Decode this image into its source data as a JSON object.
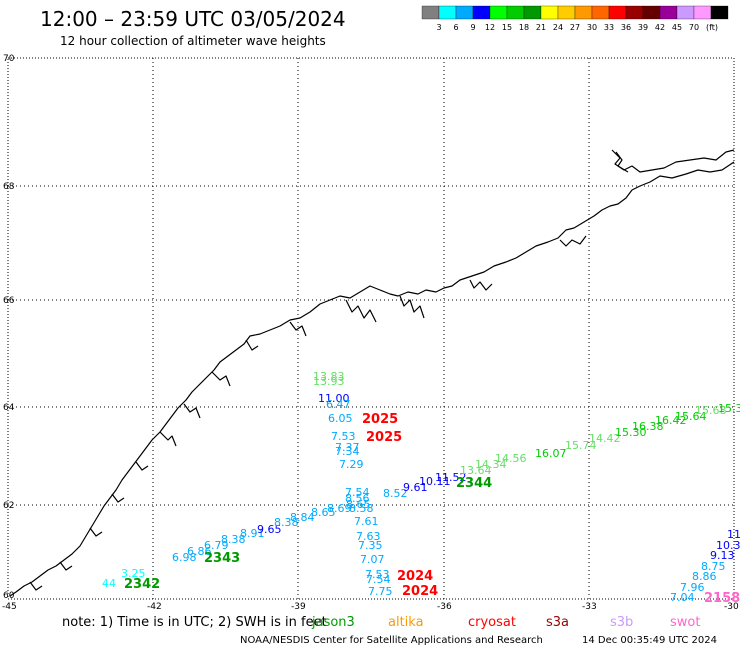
{
  "title": "12:00 – 23:59 UTC 03/05/2024",
  "subtitle": "12 hour collection of altimeter wave heights",
  "legend": {
    "colors": [
      "#808080",
      "#00ffff",
      "#00aaff",
      "#0000ff",
      "#00ff00",
      "#00cc00",
      "#009900",
      "#ffff00",
      "#ffcc00",
      "#ff9900",
      "#ff6600",
      "#ff0000",
      "#990000",
      "#660000",
      "#990099",
      "#cc99ff",
      "#ff99ff",
      "#000000"
    ],
    "labels": [
      "3",
      "6",
      "9",
      "12",
      "15",
      "18",
      "21",
      "24",
      "27",
      "30",
      "33",
      "36",
      "39",
      "42",
      "45",
      "70"
    ],
    "unit": "(ft)"
  },
  "axes": {
    "lat_labels": [
      "70",
      "68",
      "66",
      "64",
      "62",
      "60"
    ],
    "lon_labels": [
      "-45",
      "-42",
      "-39",
      "-36",
      "-33",
      "-30"
    ]
  },
  "note": "note:  1) Time is in UTC; 2) SWH is in feet",
  "satellites": [
    {
      "name": "jason3",
      "color": "#009900"
    },
    {
      "name": "altika",
      "color": "#ff9900"
    },
    {
      "name": "cryosat",
      "color": "#ff0000"
    },
    {
      "name": "s3a",
      "color": "#990000"
    },
    {
      "name": "s3b",
      "color": "#cc99ff"
    },
    {
      "name": "swot",
      "color": "#ff66cc"
    }
  ],
  "credit": "NOAA/NESDIS Center for Satellite Applications and Research",
  "timestamp": "14 Dec 00:35:49 UTC 2024",
  "passes": [
    {
      "label": "2343",
      "color": "#009900"
    },
    {
      "label": "2342",
      "color": "#009900"
    },
    {
      "label": "2344",
      "color": "#009900"
    },
    {
      "label": "2025",
      "color": "#ff0000"
    },
    {
      "label": "2025",
      "color": "#ff0000"
    },
    {
      "label": "2024",
      "color": "#ff0000"
    },
    {
      "label": "2024",
      "color": "#ff0000"
    },
    {
      "label": "2158",
      "color": "#ff66cc"
    }
  ],
  "observations": [
    {
      "text": "13.83",
      "color": "#66dd66"
    },
    {
      "text": "13.93",
      "color": "#66dd66"
    },
    {
      "text": "11.00",
      "color": "#0000ff"
    },
    {
      "text": "6.47",
      "color": "#00aaff"
    },
    {
      "text": "6.05",
      "color": "#00aaff"
    },
    {
      "text": "7.53",
      "color": "#00aaff"
    },
    {
      "text": "7.37",
      "color": "#00aaff"
    },
    {
      "text": "7.34",
      "color": "#00aaff"
    },
    {
      "text": "7.29",
      "color": "#00aaff"
    },
    {
      "text": "7.54",
      "color": "#00aaff"
    },
    {
      "text": "8.56",
      "color": "#00aaff"
    },
    {
      "text": "8.65",
      "color": "#00aaff"
    },
    {
      "text": "8.58",
      "color": "#00aaff"
    },
    {
      "text": "8.52",
      "color": "#00aaff"
    },
    {
      "text": "7.61",
      "color": "#00aaff"
    },
    {
      "text": "7.63",
      "color": "#00aaff"
    },
    {
      "text": "7.35",
      "color": "#00aaff"
    },
    {
      "text": "7.07",
      "color": "#00aaff"
    },
    {
      "text": "7.53",
      "color": "#00aaff"
    },
    {
      "text": "7.54",
      "color": "#00aaff"
    },
    {
      "text": "7.75",
      "color": "#00aaff"
    },
    {
      "text": "9.61",
      "color": "#0000ff"
    },
    {
      "text": "10.11",
      "color": "#0000ff"
    },
    {
      "text": "11.52",
      "color": "#0000ff"
    },
    {
      "text": "6.98",
      "color": "#00aaff"
    },
    {
      "text": "6.86",
      "color": "#00aaff"
    },
    {
      "text": "6.79",
      "color": "#00aaff"
    },
    {
      "text": "8.38",
      "color": "#00aaff"
    },
    {
      "text": "8.91",
      "color": "#00aaff"
    },
    {
      "text": "9.65",
      "color": "#0000ff"
    },
    {
      "text": "8.38",
      "color": "#00aaff"
    },
    {
      "text": "8.84",
      "color": "#00aaff"
    },
    {
      "text": "8.65",
      "color": "#00aaff"
    },
    {
      "text": "8.69",
      "color": "#00aaff"
    },
    {
      "text": "3.25",
      "color": "#00ffff"
    },
    {
      "text": "44",
      "color": "#00ffff"
    },
    {
      "text": "13.64",
      "color": "#66dd66"
    },
    {
      "text": "14.34",
      "color": "#66dd66"
    },
    {
      "text": "14.56",
      "color": "#66dd66"
    },
    {
      "text": "16.07",
      "color": "#00cc00"
    },
    {
      "text": "15.74",
      "color": "#66dd66"
    },
    {
      "text": "14.42",
      "color": "#66dd66"
    },
    {
      "text": "15.30",
      "color": "#00cc00"
    },
    {
      "text": "16.38",
      "color": "#00cc00"
    },
    {
      "text": "16.42",
      "color": "#00cc00"
    },
    {
      "text": "15.64",
      "color": "#00cc00"
    },
    {
      "text": "15.68",
      "color": "#66dd66"
    },
    {
      "text": "15.3",
      "color": "#00cc00"
    },
    {
      "text": "11",
      "color": "#0000ff"
    },
    {
      "text": "10.3",
      "color": "#0000ff"
    },
    {
      "text": "9.13",
      "color": "#0000ff"
    },
    {
      "text": "8.75",
      "color": "#00aaff"
    },
    {
      "text": "8.86",
      "color": "#00aaff"
    },
    {
      "text": "7.96",
      "color": "#00aaff"
    },
    {
      "text": "7.04",
      "color": "#00aaff"
    }
  ]
}
